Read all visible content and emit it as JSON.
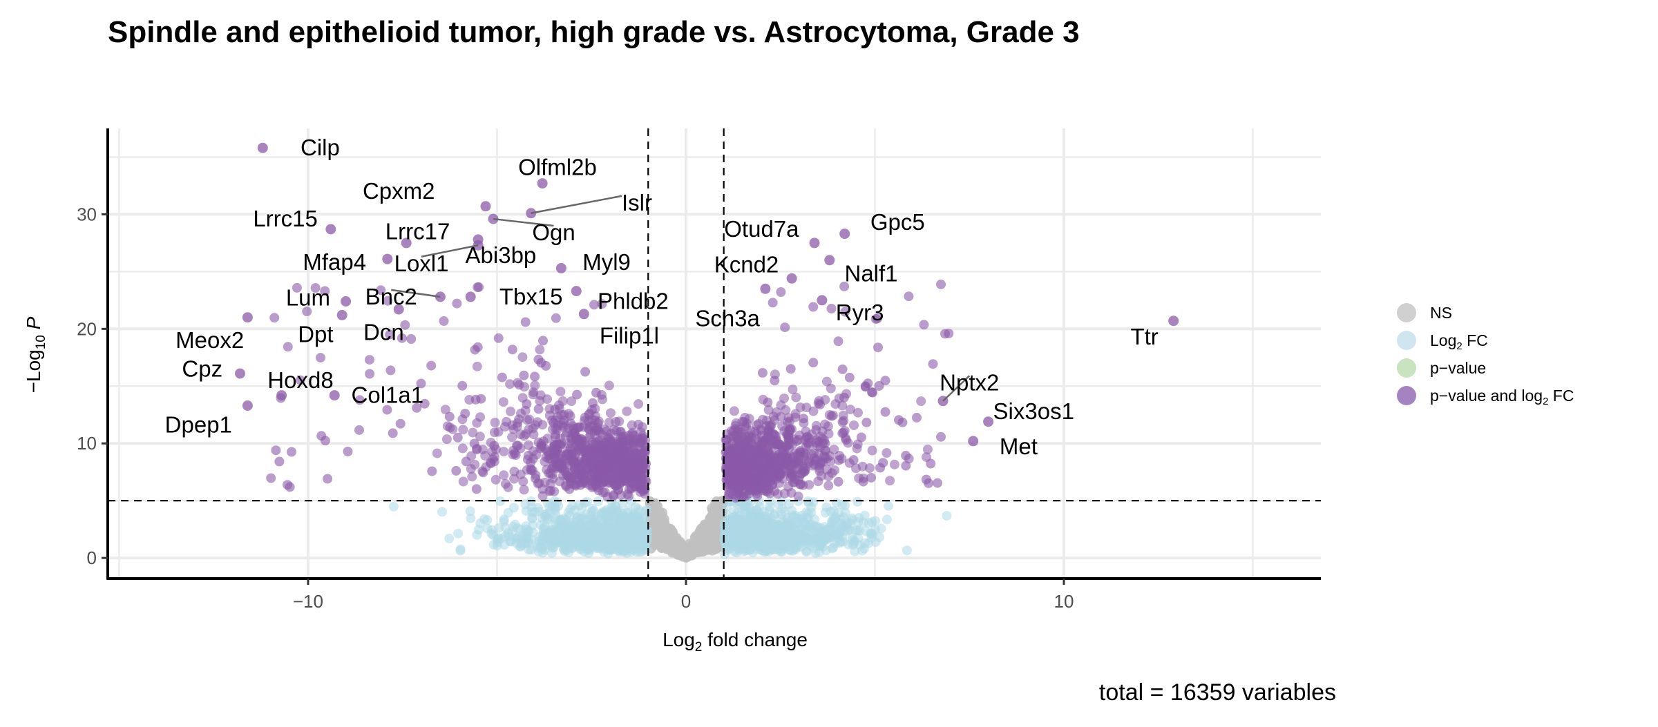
{
  "title": "Spindle and epithelioid tumor, high grade vs. Astrocytoma, Grade 3",
  "caption": "total = 16359 variables",
  "colors": {
    "ns": "#c0c0c0",
    "log2fc": "#add8e6",
    "pvalue": "#b8dbb0",
    "both": "#8b5aa8",
    "grid": "#ebebeb",
    "cutoff_line": "#000000"
  },
  "legend": [
    {
      "key": "NS",
      "label": "NS",
      "color": "#d0d0d0"
    },
    {
      "key": "log2fc",
      "label": "Log",
      "sub": "2",
      "label_after": " FC",
      "color": "#cfe6f0"
    },
    {
      "key": "pvalue",
      "label": "p−value",
      "color": "#c9e3c0"
    },
    {
      "key": "both",
      "label": "p−value and log",
      "sub": "2",
      "label_after": " FC",
      "color": "#a583c0"
    }
  ],
  "chart_data": {
    "type": "scatter",
    "subtype": "volcano",
    "title": "Spindle and epithelioid tumor, high grade vs. Astrocytoma, Grade 3",
    "xlabel": {
      "pre": "Log",
      "sub": "2",
      "post": " fold change"
    },
    "ylabel": {
      "pre": "−Log",
      "sub": "10",
      "post": " P"
    },
    "xlim": [
      -15.3,
      16.8
    ],
    "ylim": [
      -1.8,
      37.5
    ],
    "xticks": [
      -10,
      0,
      10
    ],
    "yticks": [
      0,
      10,
      20,
      30
    ],
    "x_tick_labels": [
      "−10",
      "0",
      "10"
    ],
    "y_tick_labels": [
      "0",
      "10",
      "20",
      "30"
    ],
    "grid": true,
    "legend_position": "right",
    "fc_cutoff": 1,
    "p_cutoff_log10": 5,
    "total_variables": 16359,
    "labeled_points": [
      {
        "label": "Cilp",
        "x": -11.2,
        "y": 35.8,
        "lx": -10.2,
        "ly": 35.8,
        "anchor": "start",
        "line": false
      },
      {
        "label": "Olfml2b",
        "x": -3.8,
        "y": 32.7,
        "lx": -3.4,
        "ly": 34.1,
        "anchor": "middle",
        "line": false
      },
      {
        "label": "Cpxm2",
        "x": -5.3,
        "y": 30.7,
        "lx": -7.6,
        "ly": 32.0,
        "anchor": "middle",
        "line": false
      },
      {
        "label": "Islr",
        "x": -4.1,
        "y": 30.1,
        "lx": -1.7,
        "ly": 31.0,
        "anchor": "start",
        "line": true
      },
      {
        "label": "Lrrc15",
        "x": -9.4,
        "y": 28.7,
        "lx": -10.6,
        "ly": 29.6,
        "anchor": "middle",
        "line": false
      },
      {
        "label": "Ogn",
        "x": -5.1,
        "y": 29.6,
        "lx": -3.5,
        "ly": 28.4,
        "anchor": "middle",
        "line": true
      },
      {
        "label": "Lrrc17",
        "x": -7.4,
        "y": 27.5,
        "lx": -7.1,
        "ly": 28.5,
        "anchor": "middle",
        "line": false
      },
      {
        "label": "Abi3bp",
        "x": -5.5,
        "y": 27.8,
        "lx": -4.9,
        "ly": 26.4,
        "anchor": "middle",
        "line": false
      },
      {
        "label": "Mfap4",
        "x": -7.9,
        "y": 26.1,
        "lx": -9.3,
        "ly": 25.8,
        "anchor": "middle",
        "line": false
      },
      {
        "label": "Loxl1",
        "x": -5.5,
        "y": 27.3,
        "lx": -7.0,
        "ly": 25.7,
        "anchor": "middle",
        "line": true
      },
      {
        "label": "Myl9",
        "x": -3.3,
        "y": 25.3,
        "lx": -2.1,
        "ly": 25.8,
        "anchor": "middle",
        "line": false
      },
      {
        "label": "Otud7a",
        "x": 3.4,
        "y": 27.5,
        "lx": 2.0,
        "ly": 28.7,
        "anchor": "middle",
        "line": false
      },
      {
        "label": "Gpc5",
        "x": 4.2,
        "y": 28.3,
        "lx": 5.6,
        "ly": 29.3,
        "anchor": "middle",
        "line": false
      },
      {
        "label": "Kcnd2",
        "x": 2.8,
        "y": 24.4,
        "lx": 1.6,
        "ly": 25.6,
        "anchor": "middle",
        "line": false
      },
      {
        "label": "Nalf1",
        "x": 3.8,
        "y": 26.0,
        "lx": 4.9,
        "ly": 24.8,
        "anchor": "middle",
        "line": false
      },
      {
        "label": "Lum",
        "x": -9.0,
        "y": 22.4,
        "lx": -10.0,
        "ly": 22.7,
        "anchor": "middle",
        "line": false
      },
      {
        "label": "Bnc2",
        "x": -6.5,
        "y": 22.8,
        "lx": -7.8,
        "ly": 22.8,
        "anchor": "middle",
        "line": true
      },
      {
        "label": "Tbx15",
        "x": -5.7,
        "y": 22.8,
        "lx": -4.1,
        "ly": 22.8,
        "anchor": "middle",
        "line": false
      },
      {
        "label": "Phldb2",
        "x": -2.9,
        "y": 23.3,
        "lx": -1.4,
        "ly": 22.4,
        "anchor": "middle",
        "line": false
      },
      {
        "label": "Ryr3",
        "x": 3.6,
        "y": 22.5,
        "lx": 4.6,
        "ly": 21.4,
        "anchor": "middle",
        "line": false
      },
      {
        "label": "Sch3a",
        "x": 2.1,
        "y": 23.5,
        "lx": 1.1,
        "ly": 20.9,
        "anchor": "middle",
        "line": false
      },
      {
        "label": "Ttr",
        "x": 12.9,
        "y": 20.7,
        "lx": 12.5,
        "ly": 19.3,
        "anchor": "end",
        "line": false
      },
      {
        "label": "Meox2",
        "x": -11.6,
        "y": 21.0,
        "lx": -12.6,
        "ly": 19.0,
        "anchor": "middle",
        "line": false
      },
      {
        "label": "Dpt",
        "x": -9.1,
        "y": 21.2,
        "lx": -9.8,
        "ly": 19.5,
        "anchor": "middle",
        "line": false
      },
      {
        "label": "Dcn",
        "x": -7.6,
        "y": 21.7,
        "lx": -8.0,
        "ly": 19.7,
        "anchor": "middle",
        "line": false
      },
      {
        "label": "Filip1l",
        "x": -2.7,
        "y": 21.3,
        "lx": -1.5,
        "ly": 19.4,
        "anchor": "middle",
        "line": false
      },
      {
        "label": "Cpz",
        "x": -11.8,
        "y": 16.1,
        "lx": -12.8,
        "ly": 16.5,
        "anchor": "middle",
        "line": false
      },
      {
        "label": "Hoxd8",
        "x": -10.7,
        "y": 14.2,
        "lx": -10.2,
        "ly": 15.5,
        "anchor": "middle",
        "line": false
      },
      {
        "label": "Col1a1",
        "x": -9.3,
        "y": 14.2,
        "lx": -7.9,
        "ly": 14.2,
        "anchor": "middle",
        "line": false
      },
      {
        "label": "Nptx2",
        "x": 6.8,
        "y": 13.7,
        "lx": 7.5,
        "ly": 15.3,
        "anchor": "middle",
        "line": true
      },
      {
        "label": "Six3os1",
        "x": 8.0,
        "y": 11.9,
        "lx": 9.2,
        "ly": 12.8,
        "anchor": "middle",
        "line": false
      },
      {
        "label": "Dpep1",
        "x": -11.6,
        "y": 13.3,
        "lx": -12.9,
        "ly": 11.6,
        "anchor": "middle",
        "line": false
      },
      {
        "label": "Met",
        "x": 7.6,
        "y": 10.2,
        "lx": 8.8,
        "ly": 9.7,
        "anchor": "middle",
        "line": false
      }
    ]
  }
}
